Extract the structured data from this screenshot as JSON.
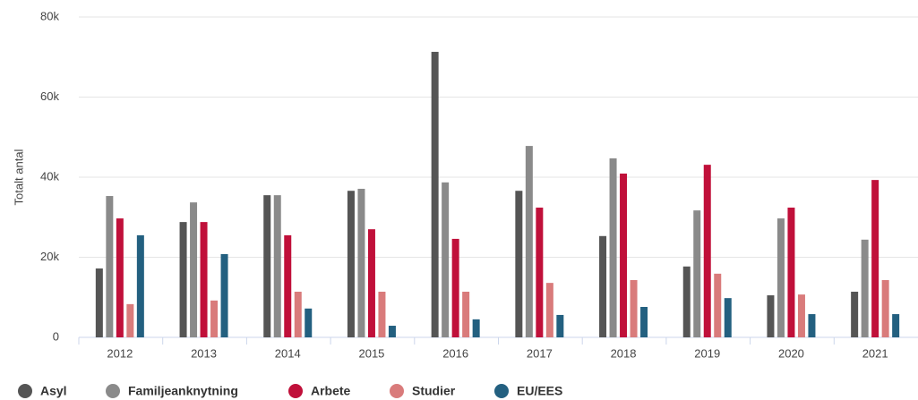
{
  "chart_data": {
    "type": "bar",
    "y_label": "Totalt antal",
    "categories": [
      "2012",
      "2013",
      "2014",
      "2015",
      "2016",
      "2017",
      "2018",
      "2019",
      "2020",
      "2021"
    ],
    "series": [
      {
        "name": "Asyl",
        "color": "#555555",
        "values": [
          17200,
          28800,
          35500,
          36600,
          71300,
          36600,
          25300,
          17700,
          10500,
          11400
        ]
      },
      {
        "name": "Familjeanknytning",
        "color": "#8a8a8a",
        "values": [
          35300,
          33700,
          35500,
          37100,
          38700,
          47800,
          44700,
          31700,
          29700,
          24400
        ]
      },
      {
        "name": "Arbete",
        "color": "#c0103a",
        "values": [
          29700,
          28800,
          25500,
          27000,
          24600,
          32400,
          40900,
          43100,
          32400,
          39300
        ]
      },
      {
        "name": "Studier",
        "color": "#d97b7b",
        "values": [
          8300,
          9200,
          11400,
          11400,
          11400,
          13600,
          14300,
          15900,
          10700,
          14300
        ]
      },
      {
        "name": "EU/EES",
        "color": "#236080",
        "values": [
          25500,
          20800,
          7200,
          2900,
          4500,
          5600,
          7600,
          9800,
          5800,
          5800
        ]
      }
    ],
    "ylim": [
      0,
      80000
    ],
    "yticks": [
      0,
      {
        "value": 20000,
        "label": "20k"
      },
      {
        "value": 40000,
        "label": "40k"
      },
      {
        "value": 60000,
        "label": "60k"
      },
      {
        "value": 80000,
        "label": "80k"
      }
    ],
    "grid": true,
    "legend": "bottom"
  }
}
